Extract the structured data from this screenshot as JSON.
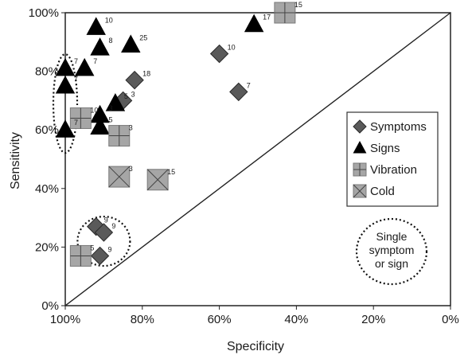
{
  "chart_data": {
    "type": "scatter",
    "title": "",
    "xlabel": "Specificity",
    "ylabel": "Sensitivity",
    "xlim": [
      100,
      0
    ],
    "ylim": [
      0,
      100
    ],
    "x_reversed": true,
    "xticks": [
      "100%",
      "80%",
      "60%",
      "40%",
      "20%",
      "0%"
    ],
    "yticks": [
      "0%",
      "20%",
      "40%",
      "60%",
      "80%",
      "100%"
    ],
    "reference_line": "diagonal",
    "legend_placement": "right",
    "series": [
      {
        "name": "Symptoms",
        "marker": "diamond",
        "color": "#555555",
        "points": [
          {
            "x": 60,
            "y": 86,
            "label": "10"
          },
          {
            "x": 55,
            "y": 73,
            "label": "7"
          },
          {
            "x": 82,
            "y": 77,
            "label": "18"
          },
          {
            "x": 85,
            "y": 70,
            "label": "3"
          },
          {
            "x": 92,
            "y": 27,
            "label": "9"
          },
          {
            "x": 90,
            "y": 25,
            "label": "9"
          },
          {
            "x": 91,
            "y": 17,
            "label": "9"
          }
        ]
      },
      {
        "name": "Signs",
        "marker": "triangle",
        "color": "#000000",
        "points": [
          {
            "x": 92,
            "y": 95,
            "label": "10"
          },
          {
            "x": 91,
            "y": 88,
            "label": "8"
          },
          {
            "x": 83,
            "y": 89,
            "label": "25"
          },
          {
            "x": 51,
            "y": 96,
            "label": "17"
          },
          {
            "x": 100,
            "y": 81,
            "label": "7"
          },
          {
            "x": 95,
            "y": 81,
            "label": "7"
          },
          {
            "x": 100,
            "y": 75,
            "label": "7"
          },
          {
            "x": 87,
            "y": 69,
            "label": "5"
          },
          {
            "x": 91,
            "y": 65,
            "label": "3"
          },
          {
            "x": 91,
            "y": 61,
            "label": "5"
          },
          {
            "x": 100,
            "y": 60,
            "label": "7"
          }
        ]
      },
      {
        "name": "Vibration",
        "marker": "square-plus",
        "color": "#999999",
        "points": [
          {
            "x": 43,
            "y": 100,
            "label": "15"
          },
          {
            "x": 96,
            "y": 64,
            "label": "10"
          },
          {
            "x": 86,
            "y": 58,
            "label": "3"
          },
          {
            "x": 96,
            "y": 17,
            "label": "5"
          }
        ]
      },
      {
        "name": "Cold",
        "marker": "square-x",
        "color": "#999999",
        "points": [
          {
            "x": 86,
            "y": 44,
            "label": "3"
          },
          {
            "x": 76,
            "y": 43,
            "label": "15"
          }
        ]
      }
    ],
    "annotations": [
      {
        "text": "Single symptom or sign",
        "lines": [
          "Single",
          "symptom",
          "or sign"
        ]
      }
    ]
  }
}
